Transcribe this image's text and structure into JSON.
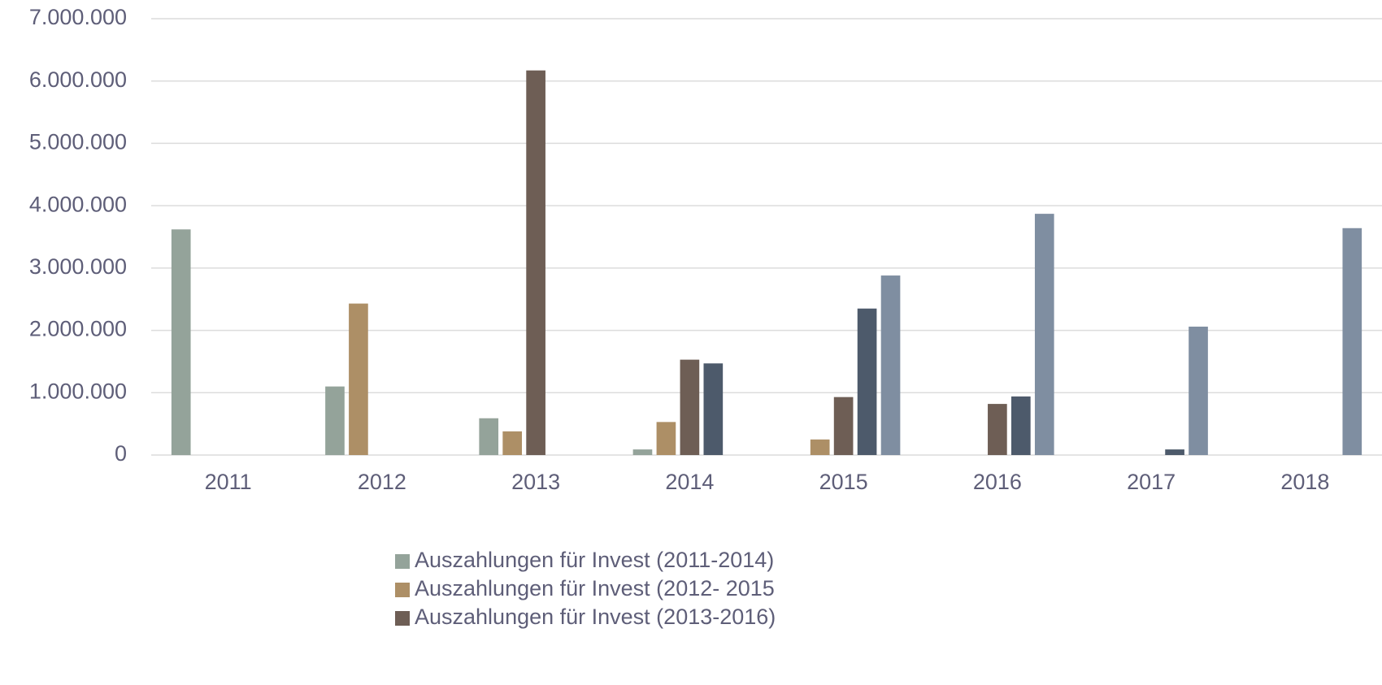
{
  "chart_data": {
    "type": "bar",
    "categories": [
      "2011",
      "2012",
      "2013",
      "2014",
      "2015",
      "2016",
      "2017",
      "2018"
    ],
    "series": [
      {
        "name": "Auszahlungen für Invest (2011-2014)",
        "color": "#94a39a",
        "values": [
          3620000,
          1100000,
          590000,
          90000,
          null,
          null,
          null,
          null
        ]
      },
      {
        "name": "Auszahlungen für Invest (2012- 2015",
        "color": "#ad8f66",
        "values": [
          null,
          2430000,
          380000,
          530000,
          250000,
          null,
          null,
          null
        ]
      },
      {
        "name": "Auszahlungen für Invest (2013-2016)",
        "color": "#6e5e55",
        "values": [
          null,
          null,
          6170000,
          1530000,
          930000,
          820000,
          null,
          null
        ]
      },
      {
        "color": "#4d5a6b",
        "values": [
          null,
          null,
          null,
          1470000,
          2350000,
          940000,
          90000,
          null
        ]
      },
      {
        "color": "#7f8ea1",
        "values": [
          null,
          null,
          null,
          null,
          2880000,
          3870000,
          2060000,
          3640000
        ]
      }
    ],
    "ylim": [
      0,
      7000000
    ],
    "yticks": [
      0,
      {
        "value": 1000000,
        "label": "1.000.000"
      },
      {
        "value": 2000000,
        "label": "2.000.000"
      },
      {
        "value": 3000000,
        "label": "3.000.000"
      },
      {
        "value": 4000000,
        "label": "4.000.000"
      },
      {
        "value": 5000000,
        "label": "5.000.000"
      },
      {
        "value": 6000000,
        "label": "6.000.000"
      },
      {
        "value": 7000000,
        "label": "7.000.000"
      }
    ],
    "grid": true
  }
}
